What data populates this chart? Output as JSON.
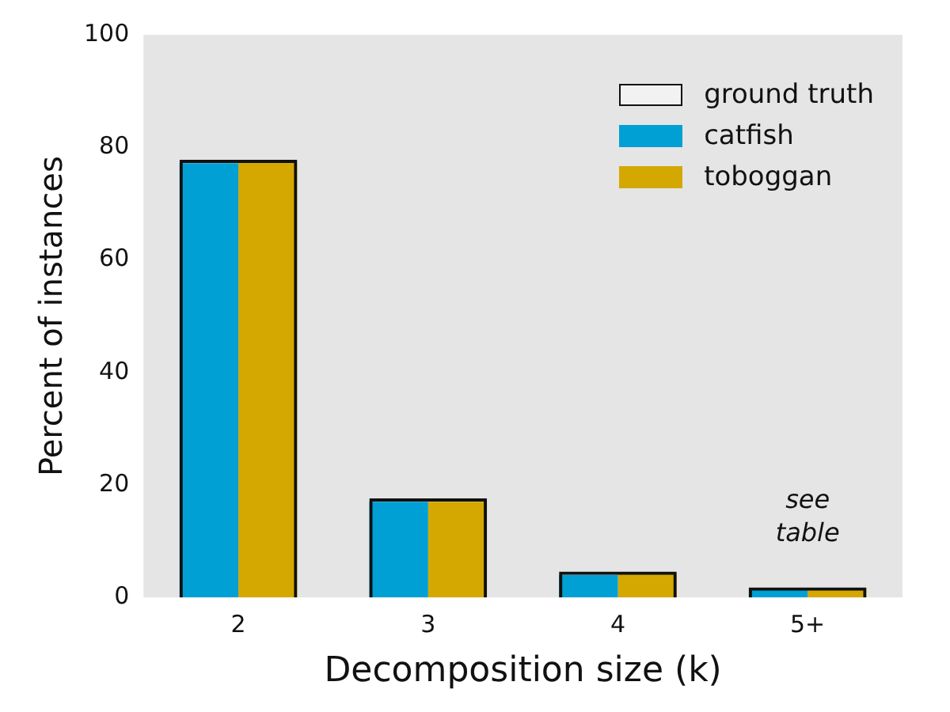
{
  "chart_data": {
    "type": "bar",
    "xlabel": "Decomposition size (k)",
    "ylabel": "Percent of instances",
    "categories": [
      "2",
      "3",
      "4",
      "5+"
    ],
    "series": [
      {
        "name": "ground truth",
        "color": "#111111",
        "values": [
          77.8,
          17.6,
          4.6,
          1.8
        ]
      },
      {
        "name": "catfish",
        "color": "#009fd4",
        "values": [
          77.2,
          17.0,
          4.0,
          1.6
        ]
      },
      {
        "name": "toboggan",
        "color": "#d4a800",
        "values": [
          77.4,
          17.0,
          4.1,
          1.6
        ]
      }
    ],
    "ylim": [
      0,
      100
    ],
    "yticks": [
      0,
      20,
      40,
      60,
      80,
      100
    ],
    "grid": false,
    "legend": "top right",
    "annotations": [
      "see table"
    ]
  }
}
